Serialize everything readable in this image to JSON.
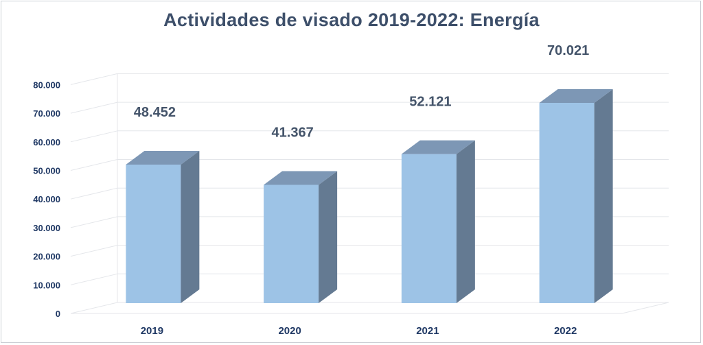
{
  "chart_data": {
    "type": "bar",
    "title": "Actividades de visado 2019-2022:  Energía",
    "categories": [
      "2019",
      "2020",
      "2021",
      "2022"
    ],
    "values": [
      48452,
      41367,
      52121,
      70021
    ],
    "data_labels": [
      "48.452",
      "41.367",
      "52.121",
      "70.021"
    ],
    "y_ticks": [
      0,
      10000,
      20000,
      30000,
      40000,
      50000,
      60000,
      70000,
      80000
    ],
    "y_tick_labels": [
      "0",
      "10.000",
      "20.000",
      "30.000",
      "40.000",
      "50.000",
      "60.000",
      "70.000",
      "80.000"
    ],
    "ylim": [
      0,
      80000
    ],
    "xlabel": "",
    "ylabel": "",
    "grid": true,
    "legend": "none",
    "style": "3d-column"
  },
  "colors": {
    "bar_front": "#9dc3e6",
    "bar_top": "#7d97b5",
    "bar_side": "#647a92",
    "title": "#3d4f6a",
    "tick": "#1f3864",
    "data_label": "#44546a",
    "grid": "#e4e6ea"
  }
}
